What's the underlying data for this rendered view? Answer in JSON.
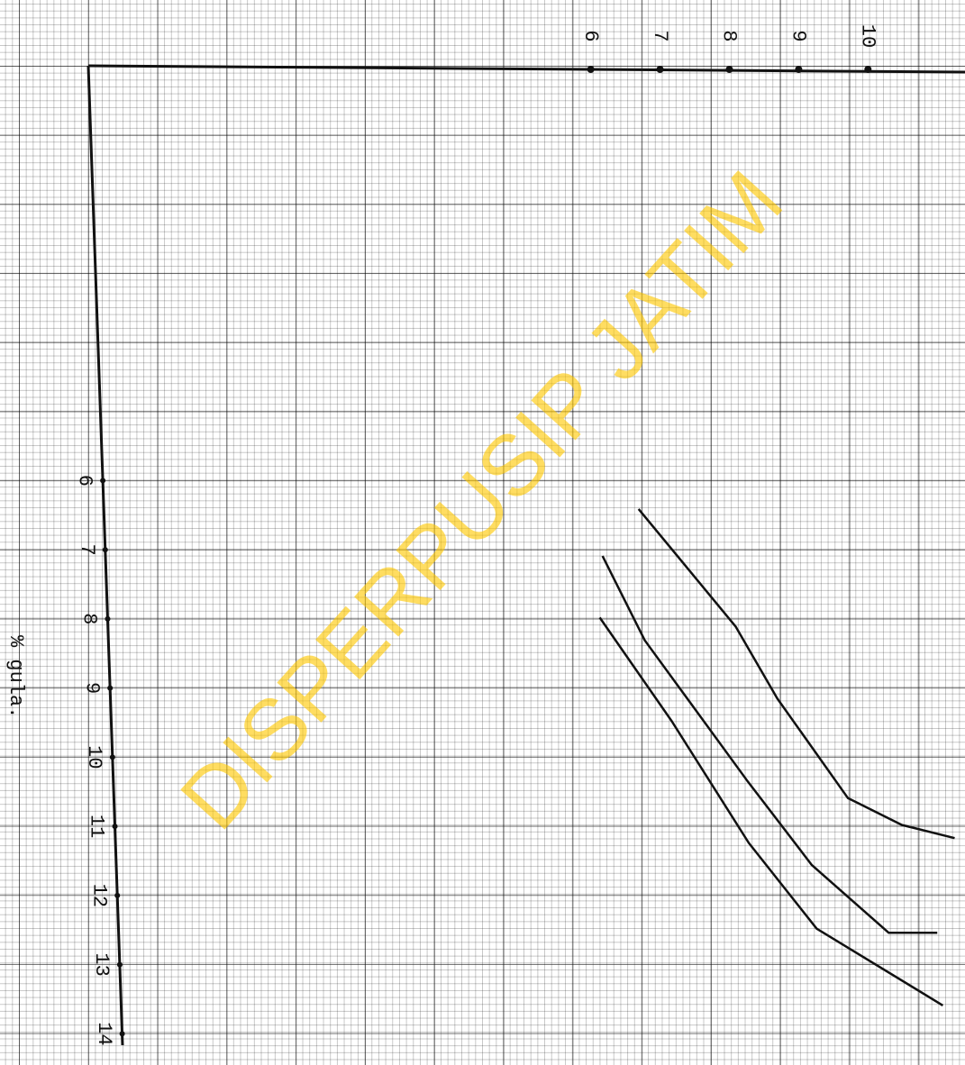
{
  "chart_data": {
    "type": "line",
    "x_label": "% gula.",
    "watermark": "DISPERPUSIP JATIM",
    "xlim": [
      0,
      14.1
    ],
    "xticks": [
      6,
      7,
      8,
      9,
      10,
      11,
      12,
      13,
      14
    ],
    "ylim": [
      -1.25,
      11.4
    ],
    "yticks": [
      6,
      7,
      8,
      9,
      10
    ],
    "series": [
      {
        "color": "#111111",
        "x": [
          6.41,
          8.11,
          9.15,
          10.59,
          10.98,
          11.17
        ],
        "values": [
          6.69,
          8.09,
          8.69,
          9.71,
          10.49,
          11.25
        ]
      },
      {
        "color": "#111111",
        "x": [
          7.09,
          8.31,
          10.33,
          11.56,
          12.54,
          12.54
        ],
        "values": [
          6.17,
          6.78,
          8.25,
          9.19,
          10.3,
          11.0
        ]
      },
      {
        "color": "#111111",
        "x": [
          7.98,
          9.48,
          11.24,
          12.48,
          13.59
        ],
        "values": [
          6.13,
          7.17,
          8.28,
          9.26,
          11.08
        ]
      }
    ]
  }
}
